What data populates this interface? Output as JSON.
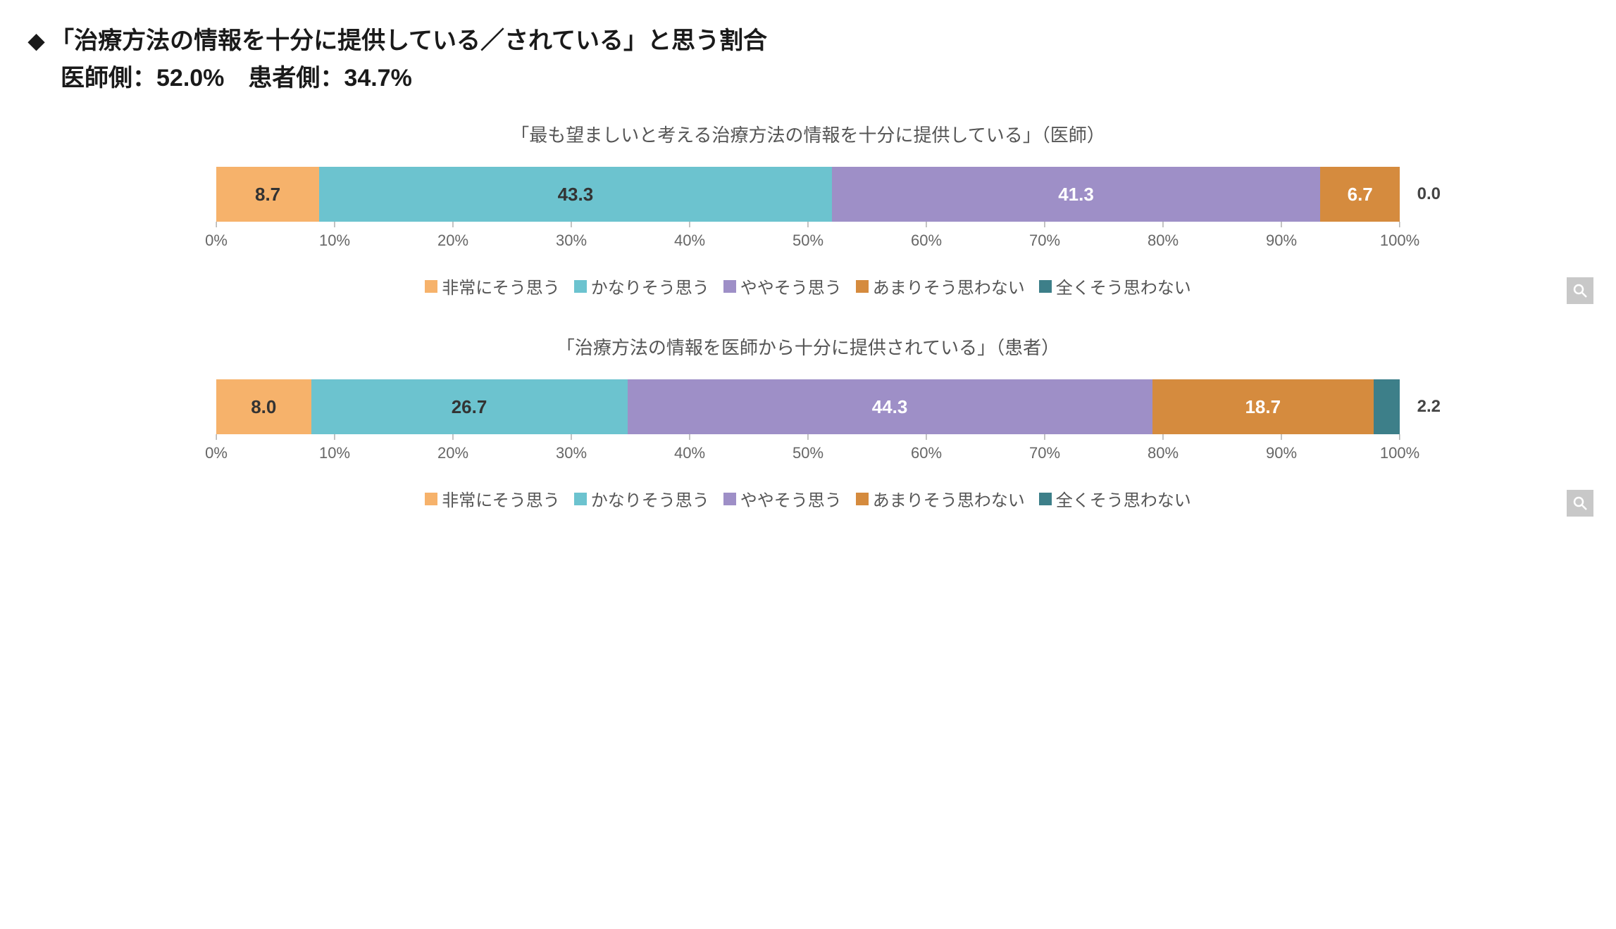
{
  "header": {
    "diamond": "◆",
    "line1": "「治療方法の情報を十分に提供している／されている」と思う割合",
    "line2": "医師側：52.0%　患者側：34.7%"
  },
  "colors": {
    "c1": "#f6b26b",
    "c2": "#6cc3cf",
    "c3": "#9e8fc7",
    "c4": "#d58b3e",
    "c5": "#3d7f89",
    "text_dark": "#333333",
    "text_white": "#ffffff"
  },
  "legend": {
    "items": [
      {
        "label": "非常にそう思う",
        "color_key": "c1"
      },
      {
        "label": "かなりそう思う",
        "color_key": "c2"
      },
      {
        "label": "ややそう思う",
        "color_key": "c3"
      },
      {
        "label": "あまりそう思わない",
        "color_key": "c4"
      },
      {
        "label": "全くそう思わない",
        "color_key": "c5"
      }
    ]
  },
  "axis": {
    "ticks": [
      0,
      10,
      20,
      30,
      40,
      50,
      60,
      70,
      80,
      90,
      100
    ],
    "suffix": "%"
  },
  "charts": [
    {
      "id": "doctor",
      "title": "「最も望ましいと考える治療方法の情報を十分に提供している」（医師）",
      "segments": [
        {
          "value": 8.7,
          "label": "8.7",
          "color_key": "c1",
          "text": "dark"
        },
        {
          "value": 43.3,
          "label": "43.3",
          "color_key": "c2",
          "text": "dark"
        },
        {
          "value": 41.3,
          "label": "41.3",
          "color_key": "c3",
          "text": "white"
        },
        {
          "value": 6.7,
          "label": "6.7",
          "color_key": "c4",
          "text": "white"
        },
        {
          "value": 0.0,
          "label": "0.0",
          "color_key": "c5",
          "text": "dark",
          "outside": true
        }
      ]
    },
    {
      "id": "patient",
      "title": "「治療方法の情報を医師から十分に提供されている」（患者）",
      "segments": [
        {
          "value": 8.0,
          "label": "8.0",
          "color_key": "c1",
          "text": "dark"
        },
        {
          "value": 26.7,
          "label": "26.7",
          "color_key": "c2",
          "text": "dark"
        },
        {
          "value": 44.3,
          "label": "44.3",
          "color_key": "c3",
          "text": "white"
        },
        {
          "value": 18.7,
          "label": "18.7",
          "color_key": "c4",
          "text": "white"
        },
        {
          "value": 2.2,
          "label": "2.2",
          "color_key": "c5",
          "text": "white",
          "outside": true
        }
      ]
    }
  ]
}
